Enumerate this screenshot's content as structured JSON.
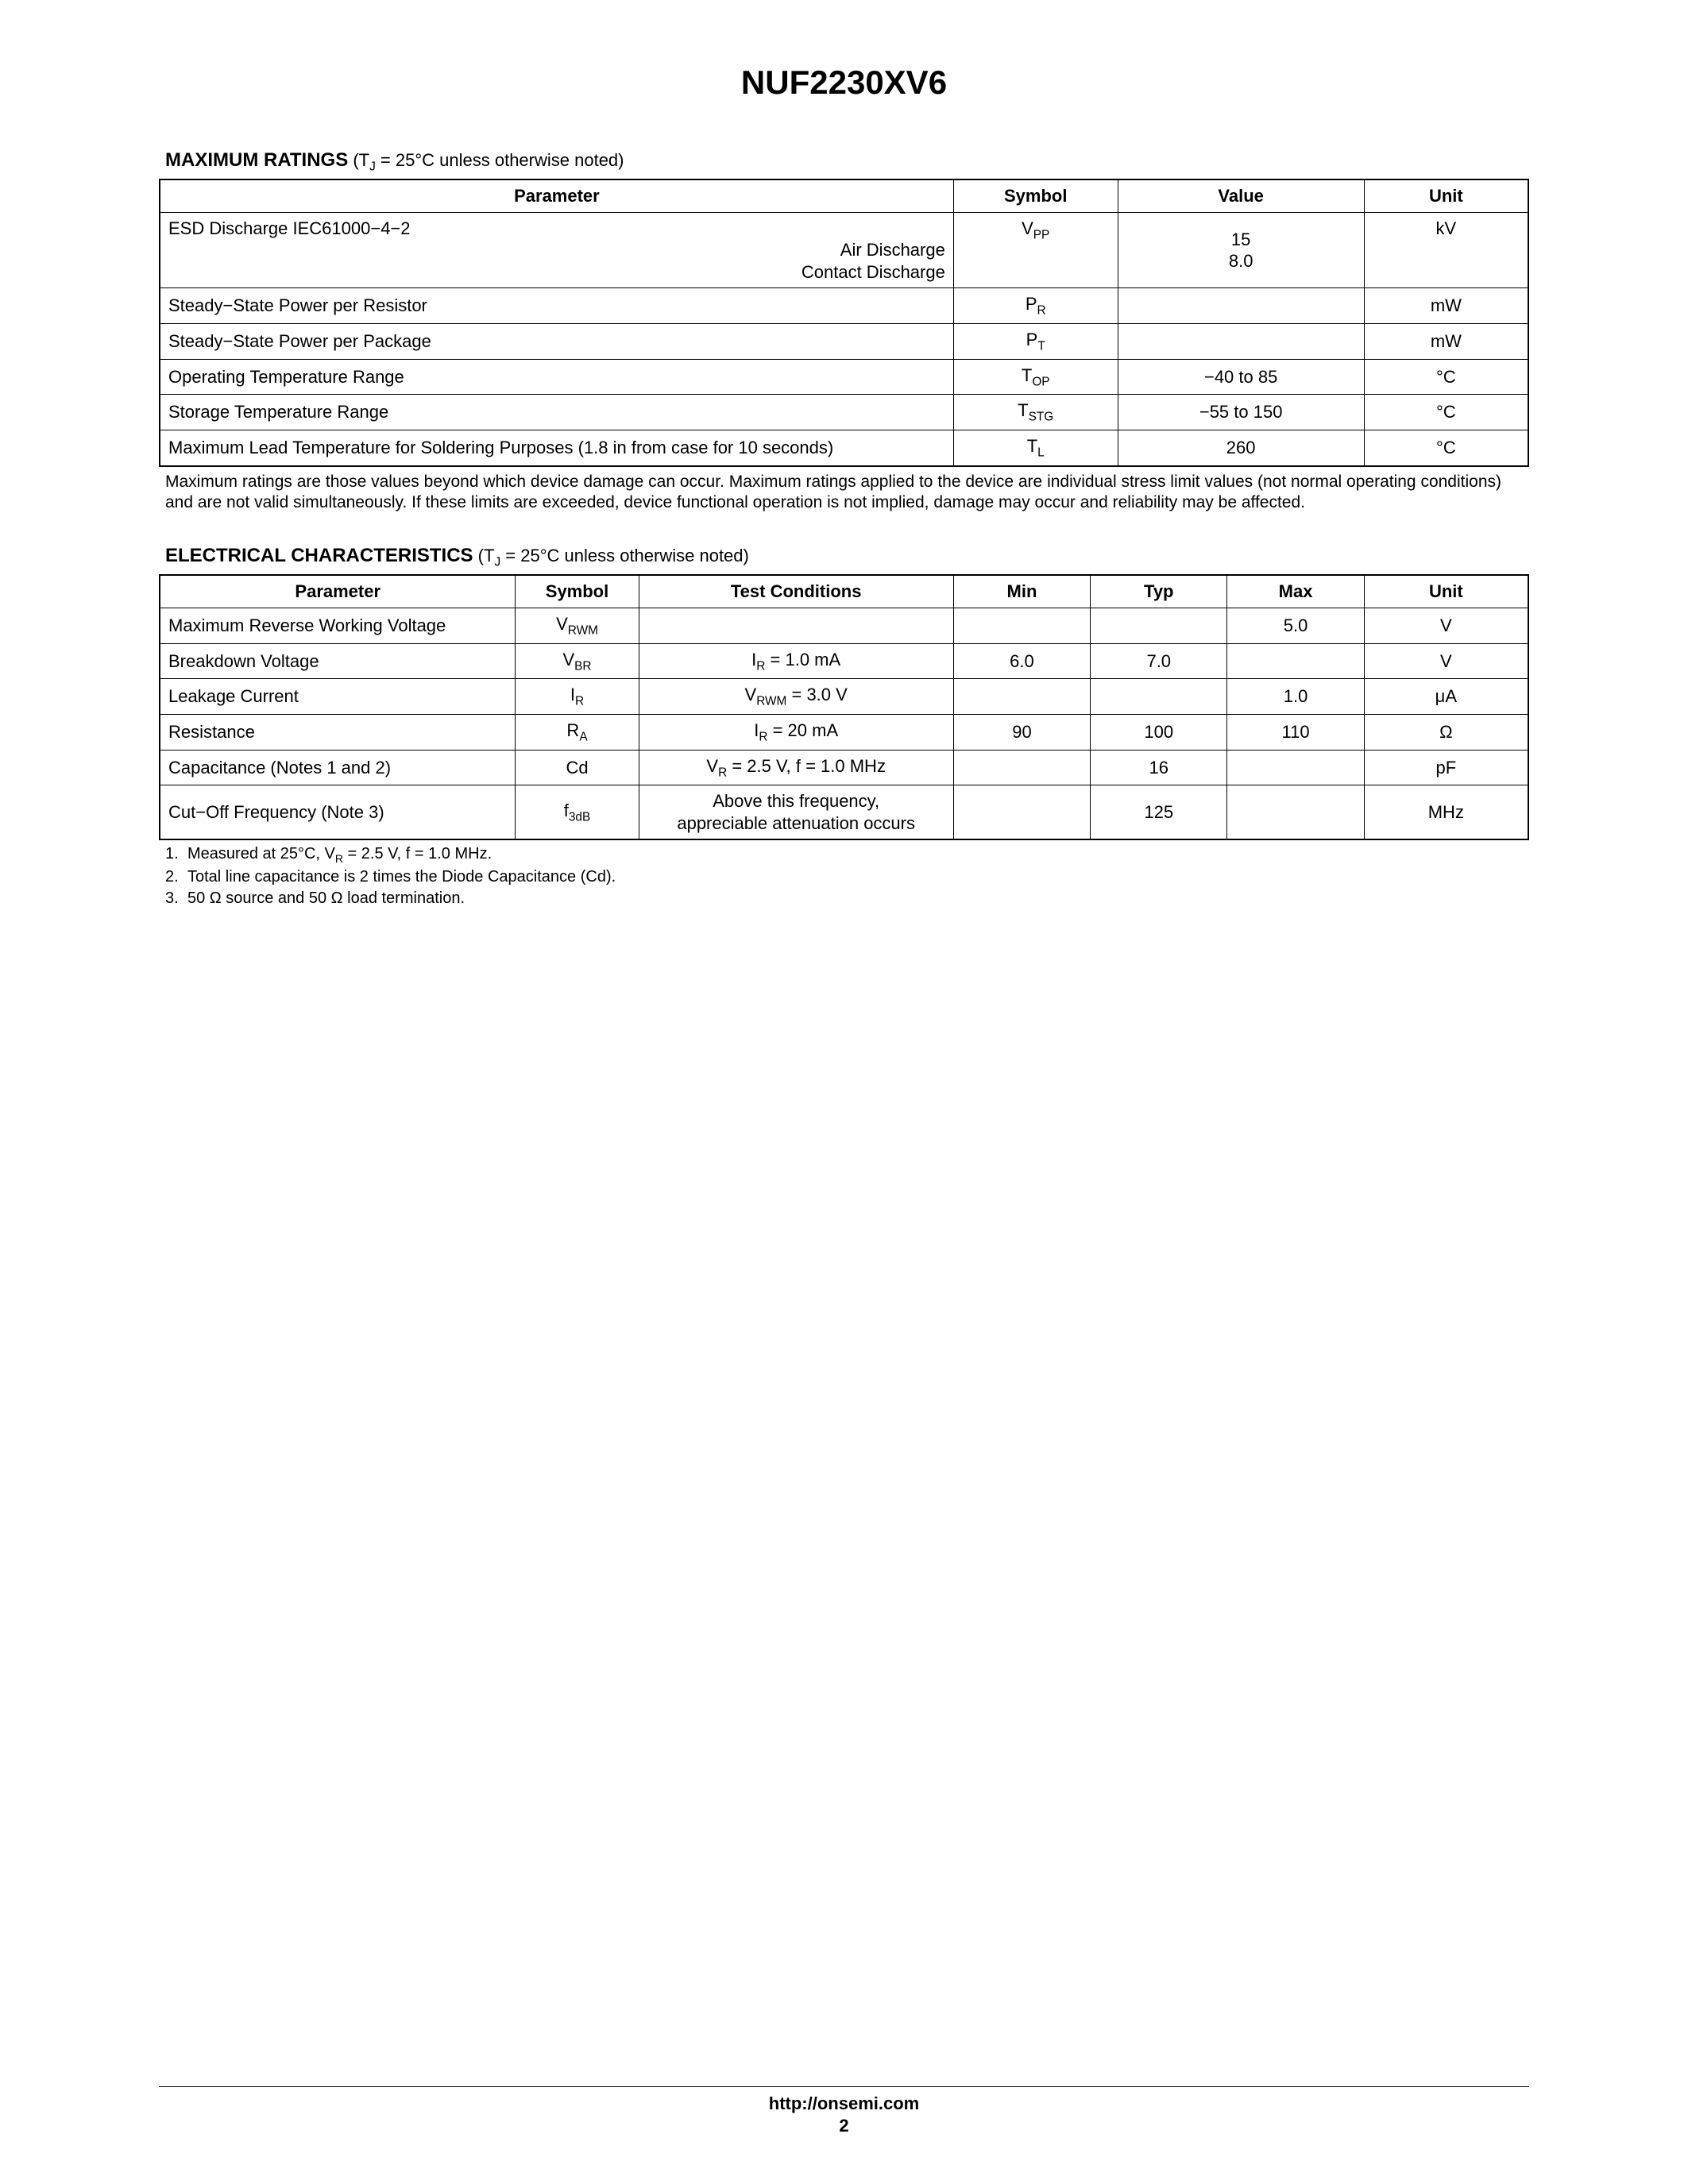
{
  "part_number": "NUF2230XV6",
  "footer": {
    "url": "http://onsemi.com",
    "page": "2"
  },
  "ratings": {
    "heading_bold": "MAXIMUM RATINGS",
    "heading_cond": " (T_J = 25°C unless otherwise noted)",
    "columns": {
      "parameter": "Parameter",
      "symbol": "Symbol",
      "value": "Value",
      "unit": "Unit"
    },
    "rows": [
      {
        "parameter": "ESD Discharge IEC61000−4−2",
        "sub1": "Air Discharge",
        "sub2": "Contact Discharge",
        "symbol": "V_PP",
        "value_lines": [
          "",
          "15",
          "8.0"
        ],
        "unit": "kV"
      },
      {
        "parameter": "Steady−State Power per Resistor",
        "symbol": "P_R",
        "value": "",
        "unit": "mW"
      },
      {
        "parameter": "Steady−State Power per Package",
        "symbol": "P_T",
        "value": "",
        "unit": "mW"
      },
      {
        "parameter": "Operating Temperature Range",
        "symbol": "T_OP",
        "value": "−40 to 85",
        "unit": "°C"
      },
      {
        "parameter": "Storage Temperature Range",
        "symbol": "T_STG",
        "value": "−55 to 150",
        "unit": "°C"
      },
      {
        "parameter": "Maximum Lead Temperature for Soldering Purposes (1.8 in from case for 10 seconds)",
        "symbol": "T_L",
        "value": "260",
        "unit": "°C"
      }
    ],
    "note": "Maximum ratings are those values beyond which device damage can occur. Maximum ratings applied to the device are individual stress limit values (not normal operating conditions) and are not valid simultaneously. If these limits are exceeded, device functional operation is not implied, damage may occur and reliability may be affected."
  },
  "electrical": {
    "heading_bold": "ELECTRICAL CHARACTERISTICS",
    "heading_cond": " (T_J = 25°C unless otherwise noted)",
    "columns": {
      "parameter": "Parameter",
      "symbol": "Symbol",
      "test_conditions": "Test Conditions",
      "min": "Min",
      "typ": "Typ",
      "max": "Max",
      "unit": "Unit"
    },
    "rows": [
      {
        "parameter": "Maximum Reverse Working Voltage",
        "symbol": "V_RWM",
        "tc": "",
        "min": "",
        "typ": "",
        "max": "5.0",
        "unit": "V"
      },
      {
        "parameter": "Breakdown Voltage",
        "symbol": "V_BR",
        "tc": "I_R = 1.0 mA",
        "min": "6.0",
        "typ": "7.0",
        "max": "",
        "unit": "V"
      },
      {
        "parameter": "Leakage Current",
        "symbol": "I_R",
        "tc": "V_RWM = 3.0 V",
        "min": "",
        "typ": "",
        "max": "1.0",
        "unit": "μA"
      },
      {
        "parameter": "Resistance",
        "symbol": "R_A",
        "tc": "I_R = 20 mA",
        "min": "90",
        "typ": "100",
        "max": "110",
        "unit": "Ω"
      },
      {
        "parameter": "Capacitance (Notes 1 and 2)",
        "symbol": "Cd",
        "tc": "V_R = 2.5 V, f = 1.0 MHz",
        "min": "",
        "typ": "16",
        "max": "",
        "unit": "pF"
      },
      {
        "parameter": "Cut−Off Frequency (Note 3)",
        "symbol": "f_3dB",
        "tc_line1": "Above this frequency,",
        "tc_line2": "appreciable attenuation occurs",
        "min": "",
        "typ": "125",
        "max": "",
        "unit": "MHz"
      }
    ],
    "footnotes": [
      {
        "n": "1.",
        "t": "Measured at 25°C, V_R = 2.5 V, f = 1.0 MHz."
      },
      {
        "n": "2.",
        "t": "Total line capacitance is 2 times the Diode Capacitance (Cd)."
      },
      {
        "n": "3.",
        "t": "50 Ω source and 50 Ω load termination."
      }
    ]
  }
}
